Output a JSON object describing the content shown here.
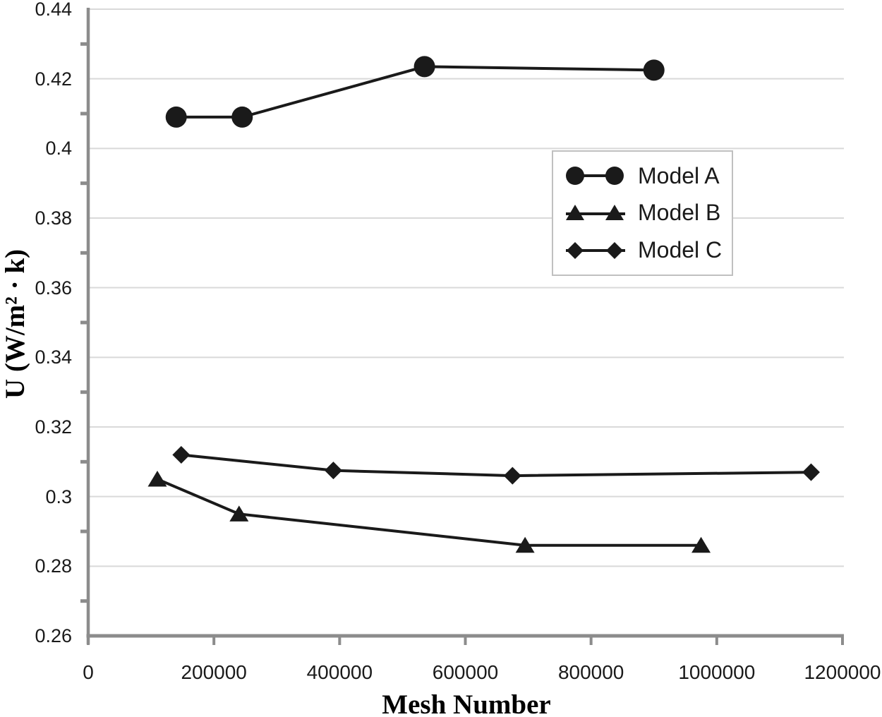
{
  "chart_data": {
    "type": "line",
    "title": "",
    "xlabel": "Mesh Number",
    "ylabel": "U (W/m² · k)",
    "xlim": [
      0,
      1200000
    ],
    "ylim": [
      0.26,
      0.44
    ],
    "grid": "horizontal-major",
    "x_ticks": [
      {
        "value": 0,
        "label": "0"
      },
      {
        "value": 200000,
        "label": "200000"
      },
      {
        "value": 400000,
        "label": "400000"
      },
      {
        "value": 600000,
        "label": "600000"
      },
      {
        "value": 800000,
        "label": "800000"
      },
      {
        "value": 1000000,
        "label": "1000000"
      },
      {
        "value": 1200000,
        "label": "1200000"
      }
    ],
    "y_ticks": [
      {
        "value": 0.44,
        "label": "0.44"
      },
      {
        "value": 0.42,
        "label": "0.42"
      },
      {
        "value": 0.4,
        "label": "0.4"
      },
      {
        "value": 0.38,
        "label": "0.38"
      },
      {
        "value": 0.36,
        "label": "0.36"
      },
      {
        "value": 0.34,
        "label": "0.34"
      },
      {
        "value": 0.32,
        "label": "0.32"
      },
      {
        "value": 0.3,
        "label": "0.3"
      },
      {
        "value": 0.28,
        "label": "0.28"
      },
      {
        "value": 0.26,
        "label": "0.26"
      }
    ],
    "y_minor_ticks": [
      0.43,
      0.41,
      0.39,
      0.37,
      0.35,
      0.33,
      0.31,
      0.29,
      0.27
    ],
    "series": [
      {
        "name": "Model A",
        "marker": "circle",
        "x": [
          140000,
          245000,
          535000,
          900000
        ],
        "y": [
          0.409,
          0.409,
          0.4235,
          0.4225
        ]
      },
      {
        "name": "Model B",
        "marker": "triangle",
        "x": [
          110000,
          240000,
          695000,
          975000
        ],
        "y": [
          0.305,
          0.295,
          0.286,
          0.286
        ]
      },
      {
        "name": "Model C",
        "marker": "diamond",
        "x": [
          148000,
          390000,
          675000,
          1150000
        ],
        "y": [
          0.312,
          0.3075,
          0.306,
          0.307
        ]
      }
    ],
    "legend_position": "upper-right-inside",
    "colors": {
      "series": "#1a1a1a",
      "gridline": "#d9d9d9",
      "axis": "#8c8c8c",
      "tick_text": "#1a1a1a",
      "title_text": "#000000",
      "legend_border": "#c0c0c0",
      "background": "#ffffff"
    }
  }
}
